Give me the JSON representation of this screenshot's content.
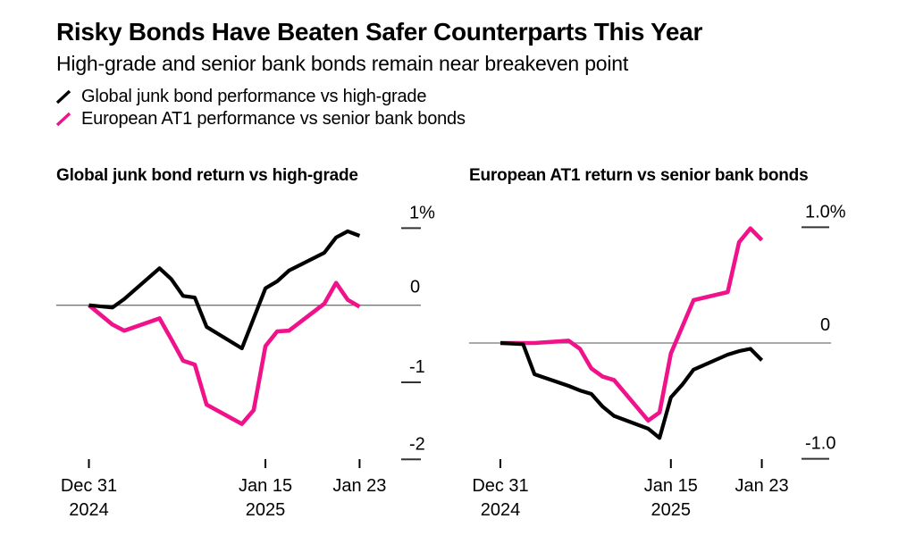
{
  "header": {
    "title": "Risky Bonds Have Beaten Safer Counterparts This Year",
    "subtitle": "High-grade and senior bank bonds remain near breakeven point",
    "legend": [
      {
        "label": "Global junk bond performance vs high-grade",
        "color": "#000000"
      },
      {
        "label": "European AT1 performance vs senior bank bonds",
        "color": "#F0128A"
      }
    ]
  },
  "colors": {
    "background": "#FFFFFF",
    "text": "#000000",
    "accent_black": "#000000",
    "accent_pink": "#F0128A",
    "zero_line": "#777777",
    "tick": "#333333"
  },
  "chart_data": [
    {
      "type": "line",
      "title": "Global junk bond return vs high-grade",
      "unit": "%",
      "x_day_offsets": [
        0,
        2,
        3,
        6,
        7,
        8,
        9,
        10,
        13,
        14,
        15,
        16,
        17,
        20,
        21,
        22,
        23
      ],
      "series": [
        {
          "name": "Global junk bond performance vs high-grade",
          "color": "#000000",
          "values": [
            0,
            -0.03,
            0.08,
            0.48,
            0.34,
            0.12,
            0.1,
            -0.28,
            -0.56,
            -0.17,
            0.22,
            0.31,
            0.45,
            0.68,
            0.88,
            0.96,
            0.9
          ]
        },
        {
          "name": "European AT1 performance vs senior bank bonds",
          "color": "#F0128A",
          "values": [
            0,
            -0.25,
            -0.33,
            -0.17,
            -0.44,
            -0.72,
            -0.77,
            -1.29,
            -1.54,
            -1.36,
            -0.53,
            -0.34,
            -0.33,
            0.02,
            0.29,
            0.07,
            -0.02
          ]
        }
      ],
      "ylim": [
        -2.4,
        1.2
      ],
      "yticks": [
        {
          "value": 1,
          "label": "1%"
        },
        {
          "value": 0,
          "label": "0"
        },
        {
          "value": -1,
          "label": "-1"
        },
        {
          "value": -2,
          "label": "-2"
        }
      ],
      "xticks": [
        {
          "day": 0,
          "line1": "Dec 31",
          "line2": "2024"
        },
        {
          "day": 15,
          "line1": "Jan 15",
          "line2": "2025"
        },
        {
          "day": 23,
          "line1": "Jan 23",
          "line2": ""
        }
      ],
      "grid": "zero-line only",
      "legend_position": "top of page"
    },
    {
      "type": "line",
      "title": "European AT1 return vs senior bank bonds",
      "unit": "%",
      "x_day_offsets": [
        0,
        2,
        3,
        6,
        7,
        8,
        9,
        10,
        13,
        14,
        15,
        16,
        17,
        20,
        21,
        22,
        23
      ],
      "series": [
        {
          "name": "Global junk bond performance vs high-grade",
          "color": "#000000",
          "values": [
            0,
            -0.01,
            -0.27,
            -0.37,
            -0.41,
            -0.44,
            -0.55,
            -0.63,
            -0.74,
            -0.82,
            -0.47,
            -0.36,
            -0.23,
            -0.1,
            -0.07,
            -0.05,
            -0.15
          ]
        },
        {
          "name": "European AT1 performance vs senior bank bonds",
          "color": "#F0128A",
          "values": [
            0,
            0,
            0,
            0.02,
            -0.05,
            -0.22,
            -0.29,
            -0.32,
            -0.67,
            -0.6,
            -0.09,
            0.14,
            0.37,
            0.44,
            0.87,
            0.99,
            0.89
          ]
        }
      ],
      "ylim": [
        -1.3,
        1.2
      ],
      "yticks": [
        {
          "value": 1,
          "label": "1.0%"
        },
        {
          "value": 0,
          "label": "0"
        },
        {
          "value": -1,
          "label": "-1.0"
        }
      ],
      "xticks": [
        {
          "day": 0,
          "line1": "Dec 31",
          "line2": "2024"
        },
        {
          "day": 15,
          "line1": "Jan 15",
          "line2": "2025"
        },
        {
          "day": 23,
          "line1": "Jan 23",
          "line2": ""
        }
      ],
      "grid": "zero-line only",
      "legend_position": "top of page"
    }
  ]
}
